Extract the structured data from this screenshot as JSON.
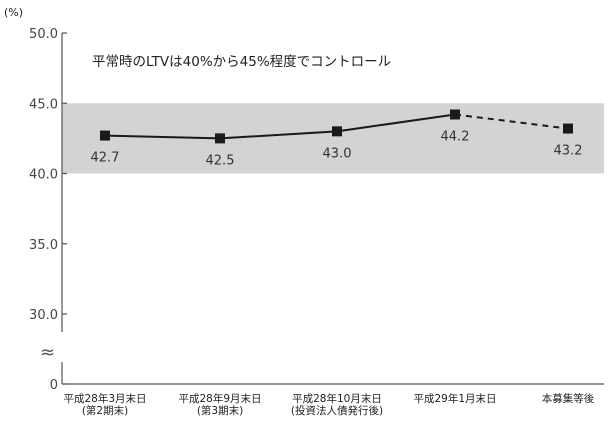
{
  "chart_data": {
    "type": "line",
    "ylabel": "(%)",
    "y_ticks": [
      "50.0",
      "45.0",
      "40.0",
      "35.0",
      "30.0",
      "0"
    ],
    "axis_break_symbol": "≈",
    "annotation": "平常時のLTVは40%から45%程度でコントロール",
    "band": {
      "from": 40.0,
      "to": 45.0,
      "color": "#d3d3d3"
    },
    "categories": [
      [
        "平成28年3月末日",
        "(第2期末)"
      ],
      [
        "平成28年9月末日",
        "(第3期末)"
      ],
      [
        "平成28年10月末日",
        "(投資法人債発行後)"
      ],
      [
        "平成29年1月末日"
      ],
      [
        "本募集等後"
      ]
    ],
    "values": [
      42.7,
      42.5,
      43.0,
      44.2,
      43.2
    ],
    "value_labels": [
      "42.7",
      "42.5",
      "43.0",
      "44.2",
      "43.2"
    ],
    "solid_segment_end_index": 3,
    "dashed_segment": [
      3,
      4
    ],
    "ylim_visible": [
      30.0,
      50.0
    ],
    "grid": false,
    "colors": {
      "line": "#1a1a1a",
      "marker": "#1a1a1a",
      "axis": "#555555"
    }
  }
}
